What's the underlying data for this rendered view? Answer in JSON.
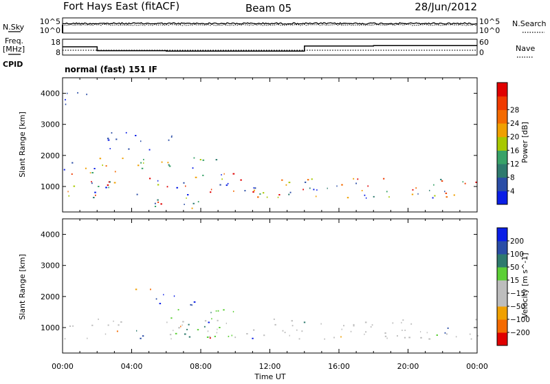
{
  "header": {
    "radar": "Fort Hays East (fitACF)",
    "beam": "Beam 05",
    "date": "28/Jun/2012"
  },
  "left_labels": {
    "nsky": "N.Sky",
    "freq_line1": "Freq.",
    "freq_line2": "[MHz]",
    "cpid": "CPID"
  },
  "right_labels": {
    "nsearch": "N.Search",
    "nave": "Nave"
  },
  "cpid_text": "normal (fast) 151 IF",
  "noise_panel": {
    "left_ticks": [
      "10^5",
      "10^0"
    ],
    "right_ticks": [
      "10^5",
      "10^0"
    ]
  },
  "freq_panel": {
    "left_ticks": [
      "18",
      "8"
    ],
    "right_ticks": [
      "60",
      "0"
    ],
    "freq_steps": [
      {
        "t0": 0,
        "t1": 2,
        "mhz": 13.2
      },
      {
        "t0": 2,
        "t1": 6,
        "mhz": 10.8
      },
      {
        "t0": 6,
        "t1": 14,
        "mhz": 10.5
      },
      {
        "t0": 14,
        "t1": 18,
        "mhz": 13.7
      },
      {
        "t0": 18,
        "t1": 24,
        "mhz": 14.0
      }
    ]
  },
  "colors": {
    "power": [
      "#0a1ee6",
      "#2a4da6",
      "#2e7a6e",
      "#38a268",
      "#a8c800",
      "#f0a000",
      "#f46a00",
      "#f03a00",
      "#e00000"
    ],
    "velocity": [
      "#e00000",
      "#f46a00",
      "#f0a000",
      "#bdbdbd",
      "#bdbdbd",
      "#5ccf36",
      "#2e7a6e",
      "#2a4da6",
      "#0a1ee6"
    ],
    "noise_trace": "#000000"
  },
  "chart_data": [
    {
      "type": "heatmap",
      "panel": "power",
      "ylabel": "Slant Range [km]",
      "xlabel": "",
      "xlim": [
        0,
        24
      ],
      "ylim": [
        180,
        4500
      ],
      "xticks": [
        "00:00",
        "04:00",
        "08:00",
        "12:00",
        "16:00",
        "20:00",
        "00:00"
      ],
      "yticks": [
        "1000",
        "2000",
        "3000",
        "4000"
      ],
      "colorbar": {
        "label": "Power [dB]",
        "ticks": [
          "4",
          "8",
          "12",
          "16",
          "20",
          "24",
          "28"
        ]
      },
      "scatter_regions": [
        {
          "x0": 0,
          "x1": 24,
          "y0": 650,
          "y1": 1300,
          "level": "high"
        },
        {
          "x0": 0,
          "x1": 2.5,
          "y0": 1200,
          "y1": 1800,
          "level": "high"
        },
        {
          "x0": 2,
          "x1": 6.5,
          "y0": 1500,
          "y1": 2000,
          "level": "mid"
        },
        {
          "x0": 7.5,
          "x1": 10,
          "y0": 1200,
          "y1": 2000,
          "level": "high"
        },
        {
          "x0": 3.5,
          "x1": 8,
          "y0": 300,
          "y1": 700,
          "level": "high"
        },
        {
          "x0": 0,
          "x1": 1.5,
          "y0": 3500,
          "y1": 4100,
          "level": "low"
        },
        {
          "x0": 2.5,
          "x1": 6.5,
          "y0": 2200,
          "y1": 2800,
          "level": "low"
        }
      ]
    },
    {
      "type": "heatmap",
      "panel": "velocity",
      "ylabel": "Slant Range [km]",
      "xlabel": "Time UT",
      "xlim": [
        0,
        24
      ],
      "ylim": [
        180,
        4500
      ],
      "xticks": [
        "00:00",
        "04:00",
        "08:00",
        "12:00",
        "16:00",
        "20:00",
        "00:00"
      ],
      "yticks": [
        "1000",
        "2000",
        "3000",
        "4000"
      ],
      "colorbar": {
        "label": "Velocity [m s^-1]",
        "ticks": [
          "200",
          "100",
          "50",
          "15",
          "−15",
          "−50",
          "−100",
          "−200"
        ]
      },
      "scatter_regions": [
        {
          "x0": 0,
          "x1": 24,
          "y0": 650,
          "y1": 1300,
          "level": "ground"
        },
        {
          "x0": 6,
          "x1": 10,
          "y0": 700,
          "y1": 1600,
          "level": "positive"
        },
        {
          "x0": 5,
          "x1": 8,
          "y0": 1700,
          "y1": 2100,
          "level": "strong-positive"
        },
        {
          "x0": 4,
          "x1": 6,
          "y0": 2250,
          "y1": 2450,
          "level": "negative"
        }
      ]
    }
  ]
}
